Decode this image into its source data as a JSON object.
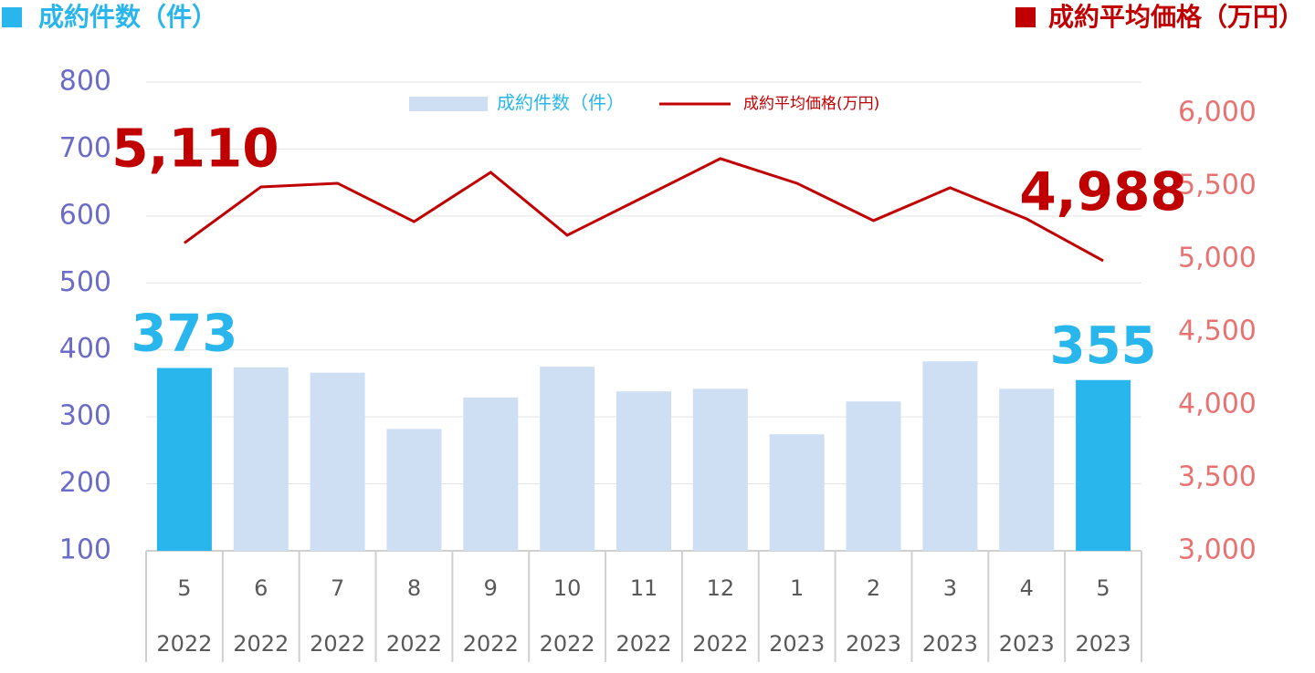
{
  "chart_data": {
    "type": "bar_line",
    "y_title": "成約件数（件）",
    "y2_title": "成約平均価格（万円）",
    "categories": [
      [
        "5",
        "2022"
      ],
      [
        "6",
        "2022"
      ],
      [
        "7",
        "2022"
      ],
      [
        "8",
        "2022"
      ],
      [
        "9",
        "2022"
      ],
      [
        "10",
        "2022"
      ],
      [
        "11",
        "2022"
      ],
      [
        "12",
        "2022"
      ],
      [
        "1",
        "2023"
      ],
      [
        "2",
        "2023"
      ],
      [
        "3",
        "2023"
      ],
      [
        "4",
        "2023"
      ],
      [
        "5",
        "2023"
      ]
    ],
    "series": [
      {
        "name": "成約件数（件）",
        "type": "bar",
        "color": "#cfdff3",
        "highlight_color": "#29b6ec",
        "values": [
          373,
          374,
          366,
          282,
          329,
          375,
          338,
          342,
          274,
          323,
          383,
          342,
          355
        ],
        "value_labels": [
          "373",
          null,
          null,
          null,
          null,
          null,
          null,
          null,
          null,
          null,
          null,
          null,
          "355"
        ]
      },
      {
        "name": "成約平均価格(万円)",
        "type": "line",
        "axis": "y2",
        "color": "#c00000",
        "values": [
          5110,
          5494,
          5519,
          5256,
          5594,
          5163,
          5425,
          5688,
          5519,
          5263,
          5488,
          5275,
          4988
        ],
        "value_labels": [
          "5,110",
          null,
          null,
          null,
          null,
          null,
          null,
          null,
          null,
          null,
          null,
          null,
          "4,988"
        ]
      }
    ],
    "ylim": [
      100,
      800
    ],
    "yticks": [
      100,
      200,
      300,
      400,
      500,
      600,
      700,
      800
    ],
    "y2lim": [
      3000,
      6000
    ],
    "y2ticks": [
      {
        "value": 3000,
        "label": "3,000"
      },
      {
        "value": 3500,
        "label": "3,500"
      },
      {
        "value": 4000,
        "label": "4,000"
      },
      {
        "value": 4500,
        "label": "4,500"
      },
      {
        "value": 5000,
        "label": "5,000"
      },
      {
        "value": 5500,
        "label": "5,500"
      },
      {
        "value": 6000,
        "label": "6,000"
      }
    ],
    "grid": true,
    "legend": "top"
  }
}
